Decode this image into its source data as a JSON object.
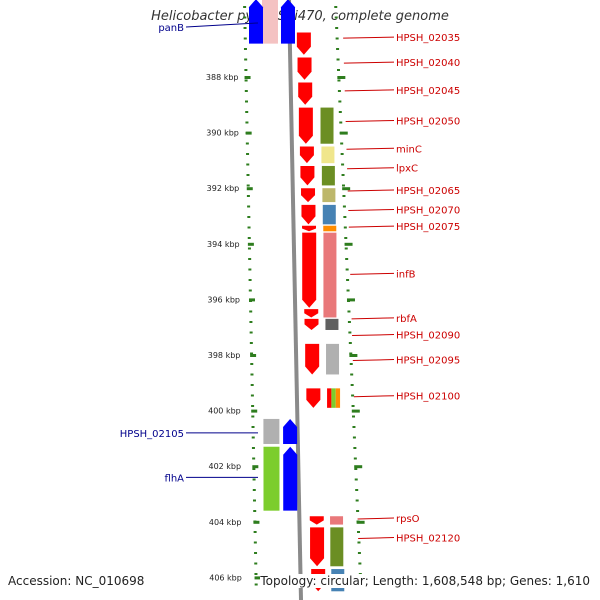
{
  "title": "Helicobacter pylori Shi470, complete genome",
  "footer": {
    "accession": "Accession: NC_010698",
    "info": "Topology: circular; Length: 1,608,548 bp; Genes: 1,610"
  },
  "colors": {
    "red": "#ff0000",
    "blue": "#0000ff",
    "olive": "#6b8e23",
    "pale_yellow": "#f0e68c",
    "tan": "#bdb76b",
    "steel_blue": "#4682b4",
    "orange": "#ff8c00",
    "salmon": "#e9787a",
    "gray": "#b0b0b0",
    "dark_gray": "#606060",
    "green": "#7ccd2c",
    "left_label": "#00008b",
    "right_label": "#cc0000",
    "tick": "#2e7d1e"
  },
  "ruler": {
    "unit": "kbp",
    "ticks": [
      {
        "kbp": 388,
        "label": "388 kbp"
      },
      {
        "kbp": 390,
        "label": "390 kbp"
      },
      {
        "kbp": 392,
        "label": "392 kbp"
      },
      {
        "kbp": 394,
        "label": "394 kbp"
      },
      {
        "kbp": 396,
        "label": "396 kbp"
      },
      {
        "kbp": 398,
        "label": "398 kbp"
      },
      {
        "kbp": 400,
        "label": "400 kbp"
      },
      {
        "kbp": 402,
        "label": "402 kbp"
      },
      {
        "kbp": 404,
        "label": "404 kbp"
      },
      {
        "kbp": 406,
        "label": "406 kbp"
      }
    ]
  },
  "left_labels": [
    {
      "name": "panB",
      "kbp": 386.2
    },
    {
      "name": "HPSH_02105",
      "kbp": 400.8
    },
    {
      "name": "flhA",
      "kbp": 402.4
    }
  ],
  "right_labels": [
    {
      "name": "HPSH_02035",
      "kbp": 386.6
    },
    {
      "name": "HPSH_02040",
      "kbp": 387.5
    },
    {
      "name": "HPSH_02045",
      "kbp": 388.5
    },
    {
      "name": "HPSH_02050",
      "kbp": 389.6
    },
    {
      "name": "minC",
      "kbp": 390.6
    },
    {
      "name": "lpxC",
      "kbp": 391.3
    },
    {
      "name": "HPSH_02065",
      "kbp": 392.1
    },
    {
      "name": "HPSH_02070",
      "kbp": 392.8
    },
    {
      "name": "HPSH_02075",
      "kbp": 393.4
    },
    {
      "name": "infB",
      "kbp": 395.1
    },
    {
      "name": "rbfA",
      "kbp": 396.7
    },
    {
      "name": "HPSH_02090",
      "kbp": 397.3
    },
    {
      "name": "HPSH_02095",
      "kbp": 398.2
    },
    {
      "name": "HPSH_02100",
      "kbp": 399.5
    },
    {
      "name": "rpsO",
      "kbp": 403.9
    },
    {
      "name": "HPSH_02120",
      "kbp": 404.6
    }
  ],
  "genes_forward": [
    {
      "start": 385.2,
      "end": 386.8,
      "color": "blue",
      "lane": "left2"
    },
    {
      "start": 385.2,
      "end": 386.8,
      "color": "blue",
      "lane": "left1"
    },
    {
      "start": 400.3,
      "end": 401.2,
      "color": "blue",
      "lane": "left2"
    },
    {
      "start": 401.3,
      "end": 403.6,
      "color": "blue",
      "lane": "left2"
    }
  ],
  "genes_reverse": [
    {
      "start": 386.4,
      "end": 387.2,
      "color": "red"
    },
    {
      "start": 387.3,
      "end": 388.1,
      "color": "red"
    },
    {
      "start": 388.2,
      "end": 389.0,
      "color": "red"
    },
    {
      "start": 389.1,
      "end": 390.4,
      "color": "red"
    },
    {
      "start": 390.5,
      "end": 391.1,
      "color": "red"
    },
    {
      "start": 391.2,
      "end": 391.9,
      "color": "red"
    },
    {
      "start": 392.0,
      "end": 392.5,
      "color": "red"
    },
    {
      "start": 392.6,
      "end": 393.3,
      "color": "red"
    },
    {
      "start": 393.35,
      "end": 393.55,
      "color": "red"
    },
    {
      "start": 393.6,
      "end": 396.3,
      "color": "red"
    },
    {
      "start": 396.35,
      "end": 396.65,
      "color": "red"
    },
    {
      "start": 396.7,
      "end": 397.1,
      "color": "red"
    },
    {
      "start": 397.6,
      "end": 398.7,
      "color": "red"
    },
    {
      "start": 399.2,
      "end": 399.9,
      "color": "red"
    },
    {
      "start": 403.8,
      "end": 404.1,
      "color": "red"
    },
    {
      "start": 404.2,
      "end": 405.6,
      "color": "red"
    },
    {
      "start": 405.7,
      "end": 406.5,
      "color": "red"
    }
  ],
  "cog_right": [
    {
      "start": 389.1,
      "end": 390.4,
      "color": "olive"
    },
    {
      "start": 390.5,
      "end": 391.1,
      "color": "pale_yellow"
    },
    {
      "start": 391.2,
      "end": 391.9,
      "color": "olive"
    },
    {
      "start": 392.0,
      "end": 392.5,
      "color": "tan"
    },
    {
      "start": 392.6,
      "end": 393.3,
      "color": "steel_blue"
    },
    {
      "start": 393.35,
      "end": 393.55,
      "color": "orange"
    },
    {
      "start": 393.6,
      "end": 396.65,
      "color": "salmon"
    },
    {
      "start": 396.7,
      "end": 397.1,
      "color": "dark_gray"
    },
    {
      "start": 397.6,
      "end": 398.7,
      "color": "gray"
    },
    {
      "start": 399.2,
      "end": 399.9,
      "color": "multi"
    },
    {
      "start": 403.8,
      "end": 404.1,
      "color": "salmon"
    },
    {
      "start": 404.2,
      "end": 405.6,
      "color": "olive"
    },
    {
      "start": 405.7,
      "end": 406.5,
      "color": "steel_blue"
    }
  ],
  "cog_left": [
    {
      "start": 385.0,
      "end": 386.8,
      "color": "pink"
    },
    {
      "start": 400.3,
      "end": 401.2,
      "color": "gray"
    },
    {
      "start": 401.3,
      "end": 403.6,
      "color": "green"
    }
  ]
}
